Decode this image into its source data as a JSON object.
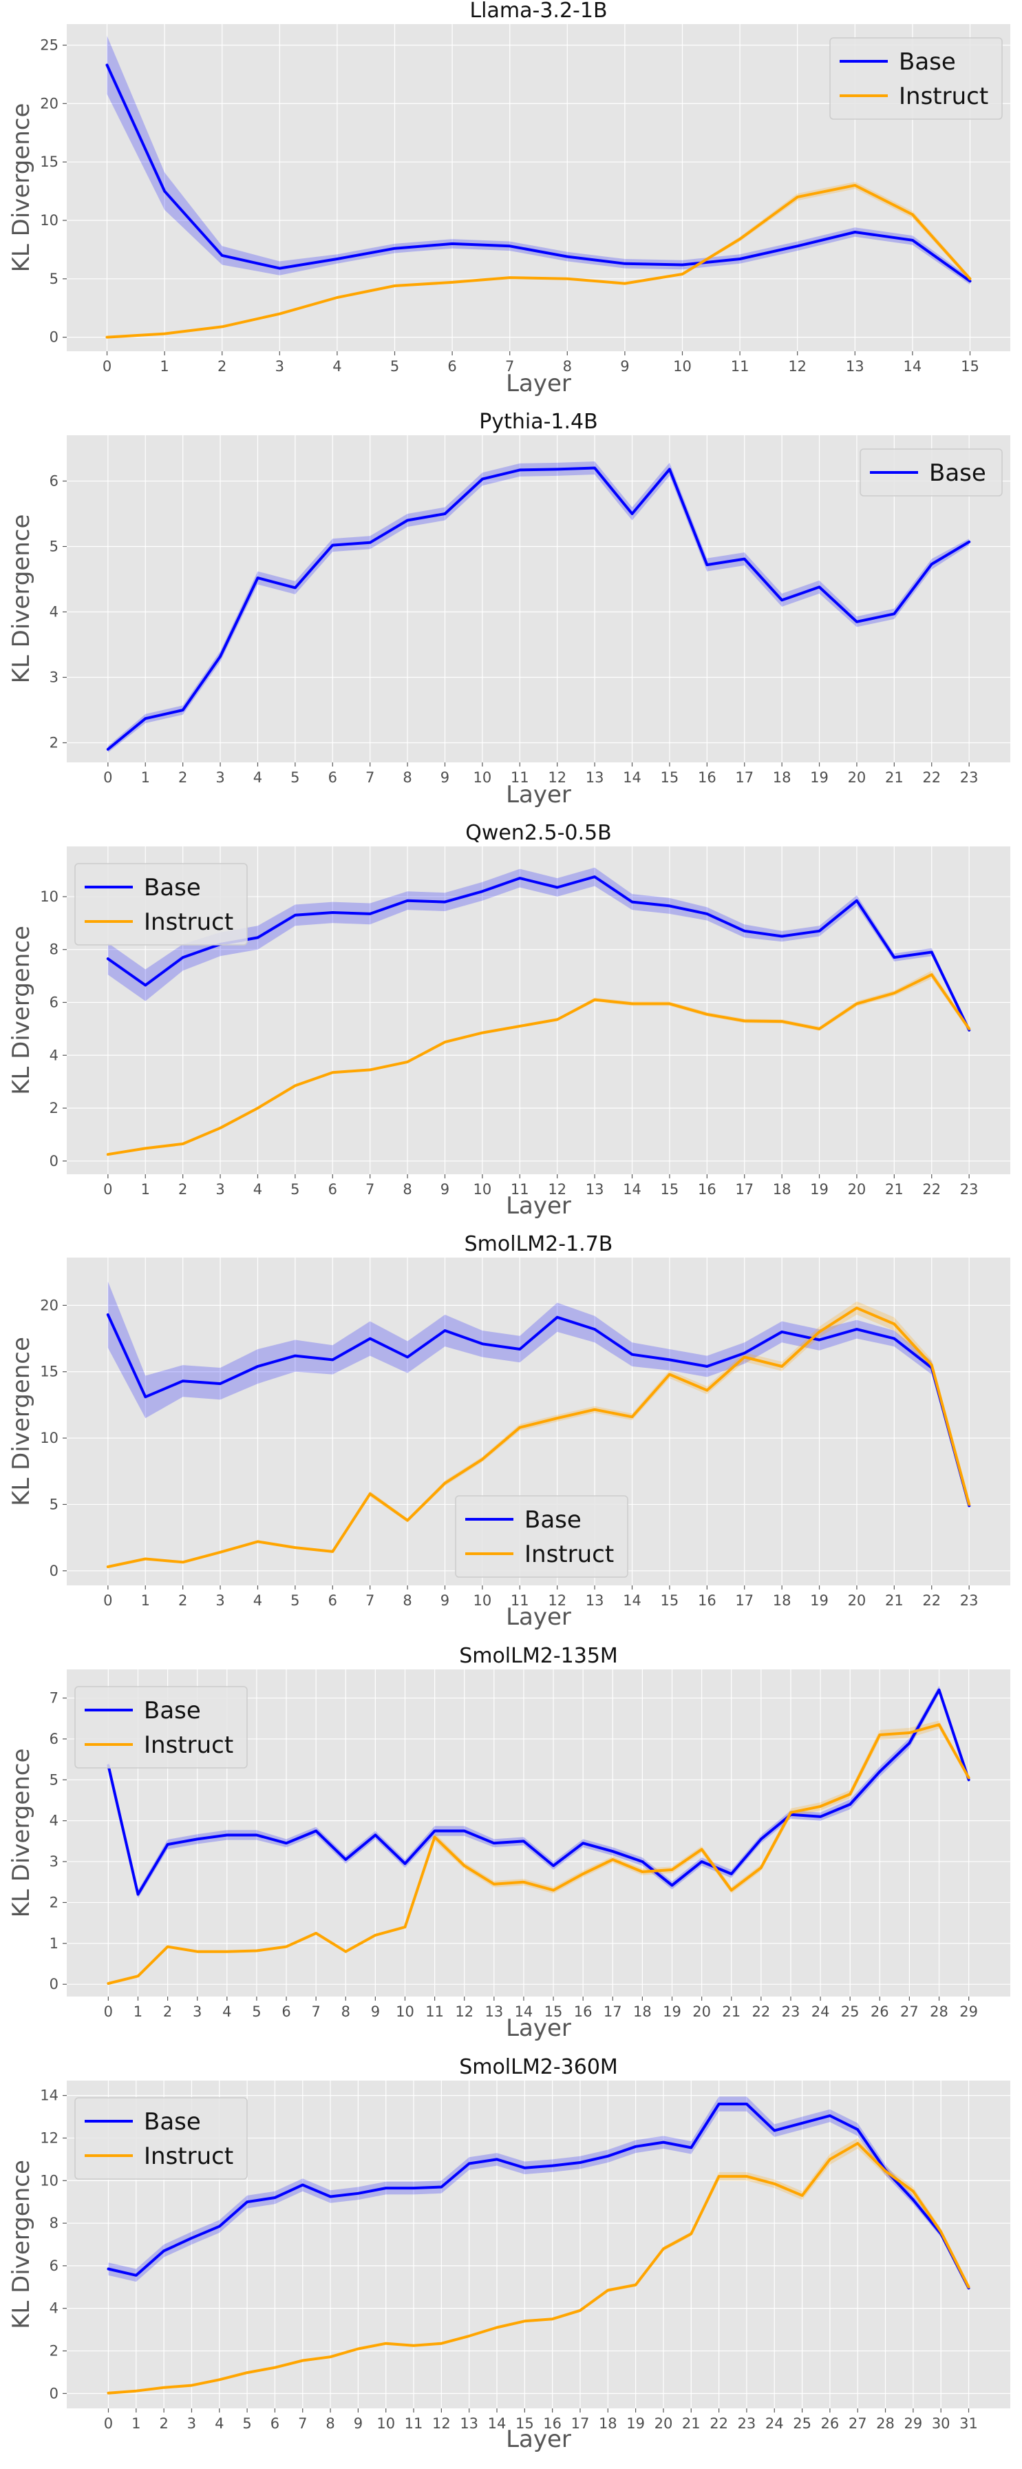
{
  "figure": {
    "ylabel": "KL Divergence",
    "xlabel": "Layer"
  },
  "colors": {
    "Base": "#0000ff",
    "Instruct": "#ffa500",
    "background": "#e5e5e5",
    "grid": "#ffffff"
  },
  "chart_data": [
    {
      "type": "line",
      "title": "Llama-3.2-1B",
      "xlabel": "Layer",
      "ylabel": "KL Divergence",
      "x": [
        0,
        1,
        2,
        3,
        4,
        5,
        6,
        7,
        8,
        9,
        10,
        11,
        12,
        13,
        14,
        15
      ],
      "xlim": [
        -0.7,
        15.7
      ],
      "ylim": [
        -1.2,
        26.8
      ],
      "yticks": [
        0,
        5,
        10,
        15,
        20,
        25
      ],
      "legend_position": "top-right",
      "series": [
        {
          "name": "Base",
          "values": [
            23.3,
            12.5,
            7.0,
            5.9,
            6.7,
            7.6,
            8.0,
            7.8,
            6.9,
            6.3,
            6.2,
            6.7,
            7.8,
            9.0,
            8.3,
            4.8
          ],
          "band": [
            2.5,
            1.6,
            0.8,
            0.6,
            0.4,
            0.4,
            0.4,
            0.4,
            0.4,
            0.4,
            0.4,
            0.4,
            0.4,
            0.4,
            0.4,
            0.3
          ]
        },
        {
          "name": "Instruct",
          "values": [
            0.0,
            0.3,
            0.9,
            2.0,
            3.4,
            4.4,
            4.7,
            5.1,
            5.0,
            4.6,
            5.4,
            8.4,
            12.0,
            13.0,
            10.5,
            5.0
          ],
          "band": [
            0,
            0,
            0,
            0,
            0.1,
            0.1,
            0.1,
            0.1,
            0.1,
            0.1,
            0.1,
            0.2,
            0.3,
            0.3,
            0.3,
            0.2
          ]
        }
      ]
    },
    {
      "type": "line",
      "title": "Pythia-1.4B",
      "xlabel": "Layer",
      "ylabel": "KL Divergence",
      "x": [
        0,
        1,
        2,
        3,
        4,
        5,
        6,
        7,
        8,
        9,
        10,
        11,
        12,
        13,
        14,
        15,
        16,
        17,
        18,
        19,
        20,
        21,
        22,
        23
      ],
      "xlim": [
        -1.1,
        24.1
      ],
      "ylim": [
        1.7,
        6.7
      ],
      "yticks": [
        2,
        3,
        4,
        5,
        6
      ],
      "legend_position": "top-right",
      "series": [
        {
          "name": "Base",
          "values": [
            1.9,
            2.37,
            2.5,
            3.32,
            4.52,
            4.37,
            5.02,
            5.06,
            5.4,
            5.5,
            6.03,
            6.17,
            6.18,
            6.2,
            5.5,
            6.18,
            4.72,
            4.81,
            4.18,
            4.38,
            3.85,
            3.97,
            4.73,
            5.07
          ],
          "band": [
            0.05,
            0.07,
            0.07,
            0.08,
            0.1,
            0.1,
            0.1,
            0.1,
            0.1,
            0.1,
            0.1,
            0.1,
            0.1,
            0.1,
            0.1,
            0.1,
            0.1,
            0.1,
            0.1,
            0.1,
            0.08,
            0.08,
            0.08,
            0.05
          ]
        }
      ]
    },
    {
      "type": "line",
      "title": "Qwen2.5-0.5B",
      "xlabel": "Layer",
      "ylabel": "KL Divergence",
      "x": [
        0,
        1,
        2,
        3,
        4,
        5,
        6,
        7,
        8,
        9,
        10,
        11,
        12,
        13,
        14,
        15,
        16,
        17,
        18,
        19,
        20,
        21,
        22,
        23
      ],
      "xlim": [
        -1.1,
        24.1
      ],
      "ylim": [
        -0.5,
        11.9
      ],
      "yticks": [
        0,
        2,
        4,
        6,
        8,
        10
      ],
      "legend_position": "top-left",
      "series": [
        {
          "name": "Base",
          "values": [
            7.65,
            6.65,
            7.7,
            8.2,
            8.45,
            9.3,
            9.4,
            9.35,
            9.85,
            9.8,
            10.2,
            10.7,
            10.35,
            10.75,
            9.8,
            9.65,
            9.35,
            8.7,
            8.5,
            8.7,
            9.85,
            7.7,
            7.9,
            4.95
          ],
          "band": [
            0.6,
            0.6,
            0.5,
            0.45,
            0.45,
            0.4,
            0.4,
            0.4,
            0.35,
            0.35,
            0.35,
            0.35,
            0.35,
            0.35,
            0.3,
            0.3,
            0.25,
            0.25,
            0.2,
            0.2,
            0.2,
            0.15,
            0.15,
            0.05
          ]
        },
        {
          "name": "Instruct",
          "values": [
            0.25,
            0.48,
            0.65,
            1.25,
            2.0,
            2.85,
            3.35,
            3.45,
            3.75,
            4.5,
            4.85,
            5.1,
            5.35,
            6.1,
            5.95,
            5.95,
            5.55,
            5.3,
            5.28,
            5.0,
            5.95,
            6.35,
            7.05,
            5.0
          ],
          "band": [
            0,
            0,
            0,
            0,
            0.05,
            0.05,
            0.05,
            0.05,
            0.05,
            0.05,
            0.05,
            0.05,
            0.05,
            0.08,
            0.08,
            0.08,
            0.08,
            0.08,
            0.08,
            0.08,
            0.1,
            0.1,
            0.15,
            0.1
          ]
        }
      ]
    },
    {
      "type": "line",
      "title": "SmolLM2-1.7B",
      "xlabel": "Layer",
      "ylabel": "KL Divergence",
      "x": [
        0,
        1,
        2,
        3,
        4,
        5,
        6,
        7,
        8,
        9,
        10,
        11,
        12,
        13,
        14,
        15,
        16,
        17,
        18,
        19,
        20,
        21,
        22,
        23
      ],
      "xlim": [
        -1.1,
        24.1
      ],
      "ylim": [
        -1.1,
        23.6
      ],
      "yticks": [
        0,
        5,
        10,
        15,
        20
      ],
      "legend_position": "bottom-center",
      "series": [
        {
          "name": "Base",
          "values": [
            19.3,
            13.1,
            14.3,
            14.1,
            15.4,
            16.2,
            15.9,
            17.5,
            16.1,
            18.1,
            17.1,
            16.7,
            19.1,
            18.2,
            16.3,
            15.9,
            15.4,
            16.4,
            18.0,
            17.4,
            18.2,
            17.5,
            15.3,
            4.9
          ],
          "band": [
            2.5,
            1.6,
            1.2,
            1.2,
            1.3,
            1.2,
            1.1,
            1.3,
            1.2,
            1.2,
            1.0,
            1.0,
            1.1,
            1.0,
            0.9,
            0.8,
            0.8,
            0.8,
            0.8,
            0.8,
            0.7,
            0.6,
            0.5,
            0.1
          ]
        },
        {
          "name": "Instruct",
          "values": [
            0.3,
            0.9,
            0.65,
            1.4,
            2.2,
            1.75,
            1.45,
            5.8,
            3.8,
            6.6,
            8.4,
            10.8,
            11.5,
            12.15,
            11.6,
            14.8,
            13.6,
            16.1,
            15.4,
            18.0,
            19.8,
            18.6,
            15.5,
            5.0
          ],
          "band": [
            0,
            0.05,
            0.05,
            0.05,
            0.1,
            0.1,
            0.1,
            0.2,
            0.15,
            0.2,
            0.2,
            0.25,
            0.25,
            0.25,
            0.25,
            0.3,
            0.3,
            0.35,
            0.35,
            0.4,
            0.5,
            0.5,
            0.4,
            0.1
          ]
        }
      ]
    },
    {
      "type": "line",
      "title": "SmolLM2-135M",
      "xlabel": "Layer",
      "ylabel": "KL Divergence",
      "x": [
        0,
        1,
        2,
        3,
        4,
        5,
        6,
        7,
        8,
        9,
        10,
        11,
        12,
        13,
        14,
        15,
        16,
        17,
        18,
        19,
        20,
        21,
        22,
        23,
        24,
        25,
        26,
        27,
        28,
        29
      ],
      "xlim": [
        -1.4,
        30.4
      ],
      "ylim": [
        -0.3,
        7.7
      ],
      "yticks": [
        0,
        1,
        2,
        3,
        4,
        5,
        6,
        7
      ],
      "legend_position": "top-left",
      "series": [
        {
          "name": "Base",
          "values": [
            5.35,
            2.2,
            3.42,
            3.55,
            3.65,
            3.65,
            3.45,
            3.75,
            3.05,
            3.65,
            2.95,
            3.75,
            3.75,
            3.45,
            3.5,
            2.9,
            3.45,
            3.25,
            3.0,
            2.42,
            3.0,
            2.7,
            3.55,
            4.15,
            4.1,
            4.4,
            5.2,
            5.9,
            7.2,
            5.0
          ],
          "band": [
            0.15,
            0.1,
            0.12,
            0.12,
            0.12,
            0.12,
            0.1,
            0.1,
            0.1,
            0.1,
            0.1,
            0.12,
            0.12,
            0.1,
            0.1,
            0.1,
            0.1,
            0.1,
            0.1,
            0.1,
            0.1,
            0.1,
            0.1,
            0.1,
            0.1,
            0.12,
            0.12,
            0.12,
            0.1,
            0.05
          ]
        },
        {
          "name": "Instruct",
          "values": [
            0.02,
            0.2,
            0.92,
            0.8,
            0.8,
            0.82,
            0.92,
            1.25,
            0.8,
            1.2,
            1.4,
            3.6,
            2.9,
            2.45,
            2.5,
            2.3,
            2.7,
            3.05,
            2.75,
            2.8,
            3.3,
            2.3,
            2.85,
            4.2,
            4.35,
            4.65,
            6.1,
            6.15,
            6.35,
            5.05
          ],
          "band": [
            0,
            0,
            0.03,
            0.03,
            0.03,
            0.03,
            0.03,
            0.03,
            0.03,
            0.03,
            0.03,
            0.1,
            0.08,
            0.08,
            0.08,
            0.08,
            0.08,
            0.08,
            0.08,
            0.08,
            0.08,
            0.08,
            0.08,
            0.1,
            0.1,
            0.1,
            0.12,
            0.12,
            0.1,
            0.05
          ]
        }
      ]
    },
    {
      "type": "line",
      "title": "SmolLM2-360M",
      "xlabel": "Layer",
      "ylabel": "KL Divergence",
      "x": [
        0,
        1,
        2,
        3,
        4,
        5,
        6,
        7,
        8,
        9,
        10,
        11,
        12,
        13,
        14,
        15,
        16,
        17,
        18,
        19,
        20,
        21,
        22,
        23,
        24,
        25,
        26,
        27,
        28,
        29,
        30,
        31
      ],
      "xlim": [
        -1.5,
        32.5
      ],
      "ylim": [
        -0.7,
        14.7
      ],
      "yticks": [
        0,
        2,
        4,
        6,
        8,
        10,
        12,
        14
      ],
      "legend_position": "top-left",
      "series": [
        {
          "name": "Base",
          "values": [
            5.85,
            5.55,
            6.7,
            7.3,
            7.85,
            9.0,
            9.2,
            9.8,
            9.25,
            9.4,
            9.65,
            9.65,
            9.7,
            10.8,
            11.0,
            10.6,
            10.7,
            10.85,
            11.15,
            11.6,
            11.8,
            11.55,
            13.6,
            13.6,
            12.35,
            12.7,
            13.05,
            12.4,
            10.5,
            9.1,
            7.5,
            4.95
          ],
          "band": [
            0.3,
            0.3,
            0.3,
            0.3,
            0.3,
            0.3,
            0.3,
            0.3,
            0.3,
            0.3,
            0.3,
            0.3,
            0.3,
            0.3,
            0.3,
            0.3,
            0.3,
            0.3,
            0.3,
            0.3,
            0.3,
            0.3,
            0.35,
            0.35,
            0.3,
            0.3,
            0.3,
            0.3,
            0.25,
            0.2,
            0.15,
            0.05
          ]
        },
        {
          "name": "Instruct",
          "values": [
            0.02,
            0.12,
            0.28,
            0.38,
            0.65,
            0.98,
            1.22,
            1.55,
            1.72,
            2.1,
            2.35,
            2.25,
            2.35,
            2.7,
            3.1,
            3.4,
            3.5,
            3.9,
            4.85,
            5.1,
            6.8,
            7.5,
            10.2,
            10.2,
            9.85,
            9.3,
            11.0,
            11.75,
            10.45,
            9.5,
            7.6,
            5.0
          ],
          "band": [
            0,
            0,
            0.02,
            0.02,
            0.03,
            0.03,
            0.03,
            0.04,
            0.04,
            0.05,
            0.05,
            0.05,
            0.05,
            0.05,
            0.06,
            0.06,
            0.06,
            0.07,
            0.08,
            0.08,
            0.1,
            0.1,
            0.2,
            0.2,
            0.2,
            0.2,
            0.25,
            0.25,
            0.2,
            0.2,
            0.15,
            0.05
          ]
        }
      ]
    }
  ]
}
